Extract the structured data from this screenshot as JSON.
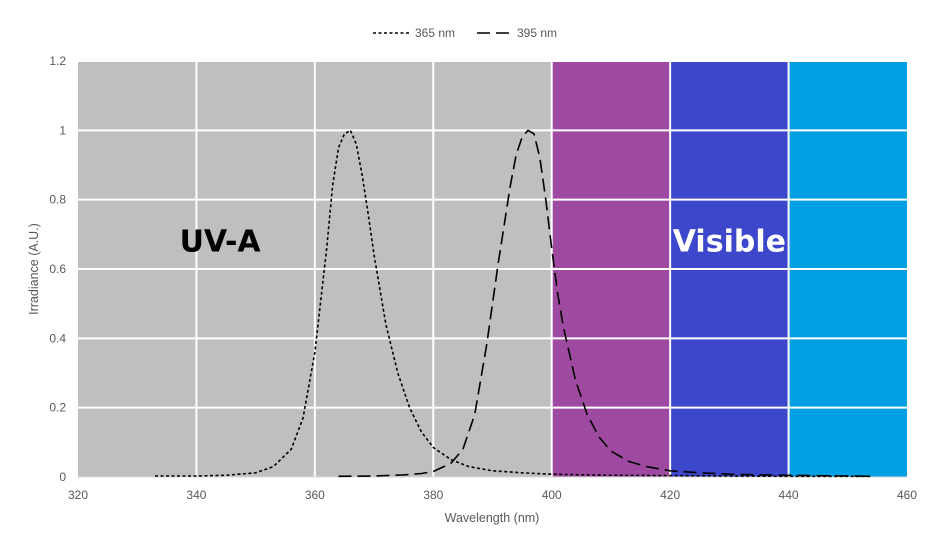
{
  "chart_data": {
    "type": "line",
    "title": "",
    "xlabel": "Wavelength (nm)",
    "ylabel": "Irradiance (A.U.)",
    "xlim": [
      320,
      460
    ],
    "ylim": [
      0,
      1.2
    ],
    "xticks": [
      320,
      340,
      360,
      380,
      400,
      420,
      440,
      460
    ],
    "yticks": [
      0,
      0.2,
      0.4,
      0.6,
      0.8,
      1,
      1.2
    ],
    "ytick_labels": [
      "0",
      "0.2",
      "0.4",
      "0.6",
      "0.8",
      "1",
      "1.2"
    ],
    "grid": true,
    "legend_position": "top-center",
    "bands": [
      {
        "name": "uv-a",
        "x0": 320,
        "x1": 400,
        "color": "#bfbfbf"
      },
      {
        "name": "violet",
        "x0": 400,
        "x1": 420,
        "color": "#9f4aa1"
      },
      {
        "name": "blue",
        "x0": 420,
        "x1": 440,
        "color": "#3d47cc"
      },
      {
        "name": "cyan",
        "x0": 440,
        "x1": 460,
        "color": "#00a0e3"
      }
    ],
    "annotations": [
      {
        "text": "UV-A",
        "x": 344,
        "y": 0.68,
        "color": "#000000"
      },
      {
        "text": "Visible",
        "x": 430,
        "y": 0.68,
        "color": "#ffffff"
      }
    ],
    "series": [
      {
        "name": "365 nm",
        "dash": "short",
        "x": [
          333,
          340,
          345,
          350,
          353,
          356,
          358,
          360,
          362,
          363,
          364,
          365,
          366,
          367,
          368,
          369,
          370,
          372,
          374,
          376,
          378,
          380,
          383,
          386,
          390,
          395,
          400,
          410,
          420,
          430,
          440,
          454
        ],
        "y": [
          0.003,
          0.003,
          0.005,
          0.012,
          0.03,
          0.08,
          0.17,
          0.36,
          0.66,
          0.84,
          0.95,
          0.99,
          1.0,
          0.96,
          0.87,
          0.76,
          0.64,
          0.44,
          0.3,
          0.2,
          0.13,
          0.085,
          0.05,
          0.03,
          0.018,
          0.012,
          0.008,
          0.005,
          0.004,
          0.003,
          0.002,
          0.002
        ]
      },
      {
        "name": "395 nm",
        "dash": "long",
        "x": [
          364,
          370,
          375,
          378,
          380,
          383,
          385,
          387,
          389,
          391,
          393,
          394,
          395,
          396,
          397,
          398,
          399,
          400,
          401,
          402,
          404,
          406,
          408,
          410,
          413,
          416,
          420,
          425,
          430,
          440,
          450,
          454
        ],
        "y": [
          0.002,
          0.003,
          0.006,
          0.01,
          0.016,
          0.04,
          0.08,
          0.18,
          0.38,
          0.62,
          0.84,
          0.93,
          0.98,
          1.0,
          0.99,
          0.92,
          0.8,
          0.66,
          0.53,
          0.43,
          0.28,
          0.18,
          0.115,
          0.075,
          0.045,
          0.03,
          0.018,
          0.012,
          0.008,
          0.005,
          0.003,
          0.002
        ]
      }
    ]
  }
}
